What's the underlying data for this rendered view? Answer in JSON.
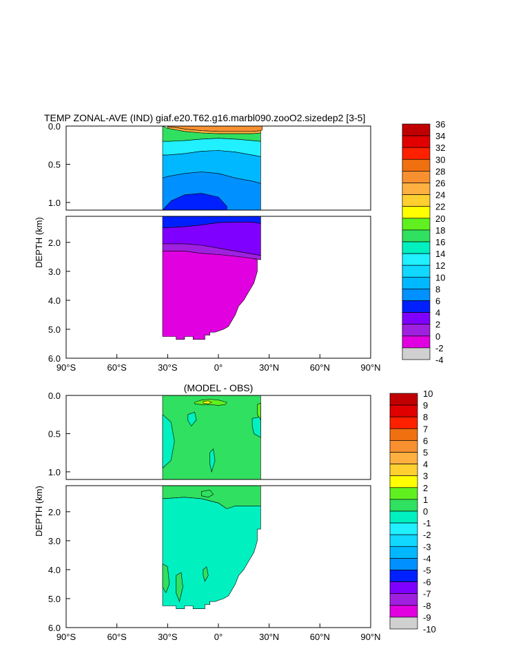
{
  "chart_data": [
    {
      "type": "heatmap",
      "title": "TEMP ZONAL-AVE (IND) giaf.e20.T62.g16.marbl090.zooO2.sizedep2 [3-5]",
      "ylabel": "DEPTH (km)",
      "xlabel": "",
      "x_ticks": [
        "90°S",
        "60°S",
        "30°S",
        "0°",
        "30°N",
        "60°N",
        "90°N"
      ],
      "x_tick_values": [
        -90,
        -60,
        -30,
        0,
        30,
        60,
        90
      ],
      "xlim": [
        -90,
        90
      ],
      "y_ticks_upper": [
        "0.0",
        "0.5",
        "1.0"
      ],
      "y_ticks_lower": [
        "2.0",
        "3.0",
        "4.0",
        "5.0",
        "6.0"
      ],
      "ylim_upper": [
        0,
        1.1
      ],
      "ylim_lower": [
        1.1,
        6.0
      ],
      "colorbar": {
        "labels": [
          "36",
          "34",
          "32",
          "30",
          "28",
          "26",
          "24",
          "22",
          "20",
          "18",
          "16",
          "14",
          "12",
          "10",
          "8",
          "6",
          "4",
          "2",
          "0",
          "-2",
          "-4"
        ],
        "colors": [
          "#c00000",
          "#e00000",
          "#ff2000",
          "#f07010",
          "#f89030",
          "#ffb040",
          "#ffd030",
          "#ffff00",
          "#60f020",
          "#30e060",
          "#00f0c0",
          "#20f0ff",
          "#10d8ff",
          "#00b8ff",
          "#0090ff",
          "#0020ff",
          "#8000ff",
          "#a020e0",
          "#e000e0",
          "#d0d0d0",
          "#707070"
        ]
      },
      "regions_upper": [
        {
          "level": "28",
          "lat": [
            -30,
            -25,
            -20,
            -10,
            0,
            10,
            20,
            25,
            26,
            26,
            25,
            20,
            10,
            0,
            -10,
            -20,
            -25,
            -30
          ],
          "depth": [
            0.0,
            0.0,
            0.0,
            0.0,
            0.0,
            0.0,
            0.0,
            0.0,
            0.0,
            0.05,
            0.06,
            0.07,
            0.07,
            0.07,
            0.06,
            0.04,
            0.02,
            0.01
          ]
        },
        {
          "level": "26",
          "lat": [
            -30,
            -25,
            -20,
            -10,
            0,
            10,
            20,
            25,
            25,
            20,
            10,
            0,
            -10,
            -20,
            -25,
            -30
          ],
          "depth": [
            0.01,
            0.02,
            0.04,
            0.06,
            0.07,
            0.07,
            0.07,
            0.06,
            0.09,
            0.1,
            0.1,
            0.1,
            0.09,
            0.07,
            0.05,
            0.03
          ]
        },
        {
          "level": "18",
          "lat": [
            -33,
            -30,
            -25,
            -20,
            -10,
            0,
            10,
            20,
            25,
            25,
            20,
            10,
            0,
            -10,
            -20,
            -25,
            -30,
            -33
          ],
          "depth": [
            0.0,
            0.03,
            0.05,
            0.07,
            0.09,
            0.1,
            0.1,
            0.1,
            0.09,
            0.2,
            0.19,
            0.17,
            0.16,
            0.17,
            0.19,
            0.2,
            0.2,
            0.2
          ]
        },
        {
          "level": "14",
          "lat": [
            -33,
            -30,
            -20,
            -10,
            0,
            10,
            20,
            25,
            25,
            20,
            10,
            0,
            -10,
            -20,
            -30,
            -33
          ],
          "depth": [
            0.2,
            0.2,
            0.19,
            0.17,
            0.16,
            0.17,
            0.19,
            0.2,
            0.4,
            0.38,
            0.34,
            0.32,
            0.33,
            0.36,
            0.38,
            0.38
          ]
        },
        {
          "level": "10",
          "lat": [
            -33,
            -30,
            -20,
            -10,
            0,
            10,
            20,
            25,
            25,
            20,
            10,
            0,
            -10,
            -20,
            -30,
            -33
          ],
          "depth": [
            0.38,
            0.38,
            0.36,
            0.33,
            0.32,
            0.34,
            0.38,
            0.4,
            0.75,
            0.72,
            0.68,
            0.62,
            0.6,
            0.62,
            0.66,
            0.68
          ]
        },
        {
          "level": "8",
          "lat": [
            -33,
            -30,
            -20,
            -10,
            0,
            10,
            20,
            25,
            25,
            -33
          ],
          "depth": [
            0.68,
            0.66,
            0.62,
            0.6,
            0.62,
            0.68,
            0.72,
            0.75,
            1.1,
            1.1
          ]
        },
        {
          "level": "6",
          "lat": [
            -33,
            -28,
            -20,
            -10,
            0,
            5,
            5,
            -33
          ],
          "depth": [
            1.1,
            0.98,
            0.9,
            0.88,
            0.93,
            1.05,
            1.1,
            1.1
          ]
        }
      ],
      "regions_lower": [
        {
          "level": "6",
          "lat": [
            -33,
            -20,
            -10,
            0,
            10,
            20,
            25,
            25,
            20,
            10,
            0,
            -10,
            -20,
            -33
          ],
          "depth": [
            1.1,
            1.1,
            1.1,
            1.1,
            1.1,
            1.1,
            1.1,
            1.35,
            1.3,
            1.3,
            1.32,
            1.4,
            1.46,
            1.5
          ]
        },
        {
          "level": "4",
          "lat": [
            -33,
            -20,
            -10,
            0,
            10,
            20,
            25,
            25,
            20,
            10,
            0,
            -10,
            -20,
            -33
          ],
          "depth": [
            1.5,
            1.46,
            1.4,
            1.32,
            1.3,
            1.3,
            1.35,
            2.45,
            2.4,
            2.3,
            2.2,
            2.1,
            2.05,
            2.05
          ]
        },
        {
          "level": "2",
          "lat": [
            -33,
            -20,
            -10,
            0,
            10,
            20,
            25,
            25,
            20,
            10,
            0,
            -10,
            -20,
            -33
          ],
          "depth": [
            2.05,
            2.05,
            2.1,
            2.2,
            2.3,
            2.4,
            2.45,
            2.6,
            2.55,
            2.48,
            2.42,
            2.38,
            2.3,
            2.3
          ]
        },
        {
          "level": "0",
          "lat": [
            -33,
            -20,
            -10,
            0,
            10,
            20,
            23,
            23,
            21,
            19,
            17,
            15,
            12,
            10,
            8,
            6,
            3,
            -2,
            -5,
            -5,
            -8,
            -8,
            -15,
            -15,
            -20,
            -20,
            -25,
            -25,
            -33
          ],
          "depth": [
            2.3,
            2.3,
            2.38,
            2.42,
            2.48,
            2.55,
            2.6,
            3.0,
            3.4,
            3.6,
            3.8,
            4.0,
            4.2,
            4.5,
            4.7,
            4.9,
            5.0,
            5.1,
            5.1,
            5.2,
            5.2,
            5.35,
            5.35,
            5.25,
            5.25,
            5.35,
            5.35,
            5.25,
            5.25
          ]
        }
      ]
    },
    {
      "type": "heatmap",
      "title": "(MODEL - OBS)",
      "ylabel": "DEPTH (km)",
      "xlabel": "",
      "x_ticks": [
        "90°S",
        "60°S",
        "30°S",
        "0°",
        "30°N",
        "60°N",
        "90°N"
      ],
      "x_tick_values": [
        -90,
        -60,
        -30,
        0,
        30,
        60,
        90
      ],
      "xlim": [
        -90,
        90
      ],
      "y_ticks_upper": [
        "0.0",
        "0.5",
        "1.0"
      ],
      "y_ticks_lower": [
        "2.0",
        "3.0",
        "4.0",
        "5.0",
        "6.0"
      ],
      "ylim_upper": [
        0,
        1.1
      ],
      "ylim_lower": [
        1.1,
        6.0
      ],
      "colorbar": {
        "labels": [
          "10",
          "9",
          "8",
          "7",
          "6",
          "5",
          "4",
          "3",
          "2",
          "1",
          "0",
          "-1",
          "-2",
          "-3",
          "-4",
          "-5",
          "-6",
          "-7",
          "-8",
          "-9",
          "-10"
        ],
        "colors": [
          "#c00000",
          "#e00000",
          "#ff2000",
          "#f07010",
          "#f89030",
          "#ffb040",
          "#ffd030",
          "#ffff00",
          "#60f020",
          "#30e060",
          "#00f0c0",
          "#20f0ff",
          "#10d8ff",
          "#00b8ff",
          "#0090ff",
          "#0020ff",
          "#8000ff",
          "#a020e0",
          "#e000e0",
          "#d0d0d0",
          "#707070"
        ]
      },
      "regions_upper": [
        {
          "level": "1",
          "lat": [
            -33,
            25,
            25,
            -33
          ],
          "depth": [
            0.0,
            0.0,
            1.1,
            1.1
          ]
        },
        {
          "level": "0",
          "lat": [
            -33,
            -28,
            -26,
            -28,
            -33
          ],
          "depth": [
            0.25,
            0.35,
            0.6,
            0.85,
            0.95
          ]
        },
        {
          "level": "0",
          "lat": [
            -5,
            -3,
            -2,
            -4,
            -5
          ],
          "depth": [
            0.75,
            0.7,
            0.85,
            1.0,
            0.9
          ]
        },
        {
          "level": "0",
          "lat": [
            20,
            25,
            25,
            21,
            20
          ],
          "depth": [
            0.3,
            0.28,
            0.55,
            0.5,
            0.4
          ]
        },
        {
          "level": "0",
          "lat": [
            -18,
            -14,
            -13,
            -16,
            -18
          ],
          "depth": [
            0.25,
            0.22,
            0.32,
            0.4,
            0.33
          ]
        },
        {
          "level": "2",
          "lat": [
            -14,
            -10,
            -5,
            0,
            5,
            4,
            0,
            -5,
            -10,
            -14
          ],
          "depth": [
            0.09,
            0.06,
            0.05,
            0.06,
            0.09,
            0.12,
            0.13,
            0.12,
            0.12,
            0.11
          ]
        },
        {
          "level": "3",
          "lat": [
            -9,
            -6,
            -4,
            -6,
            -9
          ],
          "depth": [
            0.08,
            0.07,
            0.09,
            0.11,
            0.1
          ]
        },
        {
          "level": "2",
          "lat": [
            23,
            25,
            25,
            23
          ],
          "depth": [
            0.12,
            0.1,
            0.32,
            0.25
          ]
        }
      ],
      "regions_lower": [
        {
          "level": "1",
          "lat": [
            -33,
            25,
            25,
            10,
            5,
            0,
            -10,
            -20,
            -33
          ],
          "depth": [
            1.1,
            1.1,
            1.8,
            1.8,
            1.9,
            1.7,
            1.55,
            1.5,
            1.55
          ]
        },
        {
          "level": "0",
          "lat": [
            -33,
            -20,
            -10,
            0,
            5,
            10,
            25,
            25,
            23,
            23,
            21,
            19,
            17,
            15,
            12,
            10,
            8,
            6,
            3,
            -2,
            -5,
            -5,
            -8,
            -8,
            -15,
            -15,
            -20,
            -20,
            -25,
            -25,
            -33
          ],
          "depth": [
            1.55,
            1.5,
            1.55,
            1.7,
            1.9,
            1.8,
            1.8,
            2.6,
            2.6,
            3.0,
            3.4,
            3.6,
            3.8,
            4.0,
            4.2,
            4.5,
            4.7,
            4.9,
            5.0,
            5.1,
            5.1,
            5.2,
            5.2,
            5.35,
            5.35,
            5.25,
            5.25,
            5.35,
            5.35,
            5.25,
            5.25
          ]
        },
        {
          "level": "1",
          "lat": [
            -10,
            -5,
            -3,
            -6,
            -10
          ],
          "depth": [
            1.3,
            1.25,
            1.4,
            1.5,
            1.45
          ]
        },
        {
          "level": "1",
          "lat": [
            -33,
            -30,
            -29,
            -31,
            -33
          ],
          "depth": [
            3.8,
            3.9,
            4.5,
            4.8,
            4.6
          ]
        },
        {
          "level": "1",
          "lat": [
            -25,
            -22,
            -21,
            -23,
            -25
          ],
          "depth": [
            4.2,
            4.1,
            4.6,
            5.1,
            4.8
          ]
        },
        {
          "level": "1",
          "lat": [
            -9,
            -7,
            -6,
            -8,
            -9
          ],
          "depth": [
            4.0,
            3.9,
            4.2,
            4.4,
            4.2
          ]
        }
      ]
    }
  ]
}
